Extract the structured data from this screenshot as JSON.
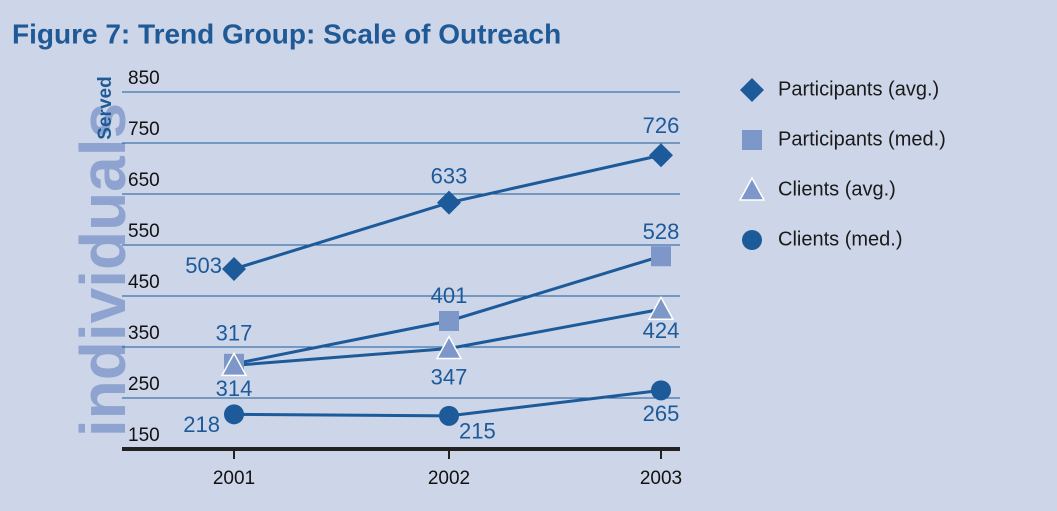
{
  "chart_data": {
    "type": "line",
    "title": "Figure 7: Trend Group: Scale of Outreach",
    "y_label_main": "individuals",
    "y_label_sub": "Served",
    "categories": [
      "2001",
      "2002",
      "2003"
    ],
    "line_color": "#1d5a9a",
    "series": [
      {
        "name": "Participants (avg.)",
        "color": "#1d5a9a",
        "marker": "diamond",
        "values": [
          503,
          633,
          726
        ]
      },
      {
        "name": "Participants (med.)",
        "color": "#7d97c9",
        "marker": "square",
        "values": [
          317,
          401,
          528
        ]
      },
      {
        "name": "Clients (avg.)",
        "color": "#7d97c9",
        "marker": "triangle",
        "values": [
          314,
          347,
          424
        ]
      },
      {
        "name": "Clients (med.)",
        "color": "#1d5a9a",
        "marker": "circle",
        "values": [
          218,
          215,
          265
        ]
      }
    ],
    "ylim": [
      150,
      850
    ],
    "yticks": [
      150,
      250,
      350,
      450,
      550,
      650,
      750,
      850
    ],
    "grid": true,
    "legend": "right"
  }
}
